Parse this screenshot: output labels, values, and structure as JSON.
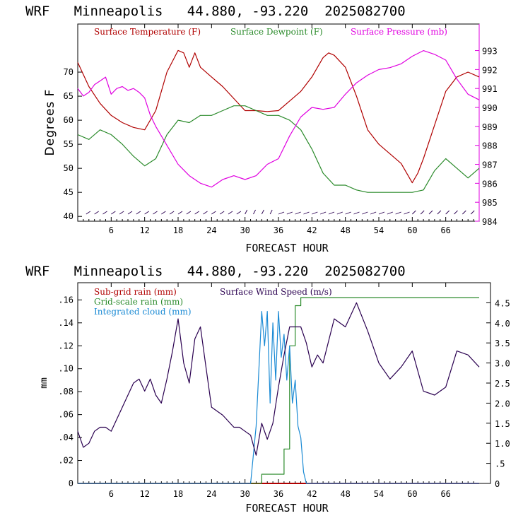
{
  "colors": {
    "temperature": "#b00000",
    "dewpoint": "#2a8a2a",
    "pressure": "#e000e0",
    "subgrid_rain": "#b00000",
    "gridscale_rain": "#2a8a2a",
    "cloud": "#1a8ad4",
    "wind_speed": "#2a0050",
    "wind_barbs": "#2a0050"
  },
  "chart_data": [
    {
      "type": "line",
      "title": "WRF   Minneapolis   44.880, -93.220  2025082700",
      "xlabel": "FORECAST HOUR",
      "ylabel": "Degrees F",
      "xlim": [
        0,
        72
      ],
      "ylim": [
        39,
        80
      ],
      "y2lim": [
        984,
        994.4
      ],
      "xticks": [
        "6",
        "12",
        "18",
        "24",
        "30",
        "36",
        "42",
        "48",
        "54",
        "60",
        "66"
      ],
      "yticks": [
        "40",
        "45",
        "50",
        "55",
        "60",
        "65",
        "70"
      ],
      "y2ticks": [
        "984",
        "985",
        "986",
        "987",
        "988",
        "989",
        "990",
        "991",
        "992",
        "993"
      ],
      "legend_position": "top",
      "series": [
        {
          "name": "Surface Temperature (F)",
          "axis": "left",
          "x": [
            0,
            2,
            4,
            6,
            8,
            10,
            12,
            14,
            16,
            18,
            19,
            20,
            21,
            22,
            24,
            26,
            28,
            30,
            32,
            34,
            36,
            38,
            40,
            42,
            44,
            45,
            46,
            48,
            50,
            52,
            54,
            56,
            58,
            60,
            61,
            62,
            64,
            66,
            68,
            70,
            72
          ],
          "y": [
            72,
            67,
            63.5,
            61,
            59.5,
            58.5,
            58,
            62,
            70,
            74.5,
            74,
            71,
            74,
            71,
            69,
            67,
            64.5,
            62,
            62,
            61.8,
            62,
            64,
            66,
            69,
            73,
            74,
            73.5,
            71,
            65,
            58,
            55,
            53,
            51,
            47,
            49,
            52,
            59,
            66,
            69,
            70,
            69
          ]
        },
        {
          "name": "Surface Dewpoint (F)",
          "axis": "left",
          "x": [
            0,
            2,
            4,
            6,
            8,
            10,
            12,
            14,
            16,
            18,
            20,
            22,
            24,
            26,
            28,
            30,
            32,
            34,
            36,
            38,
            40,
            42,
            44,
            46,
            48,
            50,
            52,
            54,
            56,
            58,
            60,
            62,
            64,
            66,
            68,
            70,
            72
          ],
          "y": [
            57,
            56,
            58,
            57,
            55,
            52.5,
            50.5,
            52,
            57,
            60,
            59.5,
            61,
            61,
            62,
            63,
            63,
            62,
            61,
            61,
            60,
            58,
            54,
            49,
            46.5,
            46.5,
            45.5,
            45,
            45,
            45,
            45,
            45,
            45.5,
            49.5,
            52,
            50,
            48,
            50
          ]
        },
        {
          "name": "Surface Pressure (mb)",
          "axis": "right",
          "x": [
            0,
            1,
            2,
            3,
            4,
            5,
            6,
            7,
            8,
            9,
            10,
            11,
            12,
            13,
            14,
            16,
            18,
            20,
            22,
            24,
            26,
            28,
            30,
            32,
            34,
            36,
            38,
            40,
            42,
            44,
            46,
            48,
            50,
            52,
            54,
            56,
            58,
            60,
            62,
            64,
            66,
            68,
            70,
            72
          ],
          "y": [
            991,
            990.6,
            990.8,
            991.2,
            991.4,
            991.6,
            990.7,
            991,
            991.1,
            990.9,
            991,
            990.8,
            990.5,
            989.6,
            989,
            988,
            987,
            986.4,
            986,
            985.8,
            986.2,
            986.4,
            986.2,
            986.4,
            987,
            987.3,
            988.5,
            989.5,
            990,
            989.9,
            990,
            990.7,
            991.3,
            991.7,
            992,
            992.1,
            992.3,
            992.7,
            993,
            992.8,
            992.5,
            991.5,
            990.7,
            990.4
          ]
        }
      ],
      "wind_barb_rows": 1
    },
    {
      "type": "line",
      "title": "WRF   Minneapolis   44.880, -93.220  2025082700",
      "xlabel": "FORECAST HOUR",
      "ylabel": "mm",
      "xlim": [
        0,
        72
      ],
      "ylim": [
        0,
        0.175
      ],
      "y2lim": [
        0,
        5
      ],
      "xticks": [
        "6",
        "12",
        "18",
        "24",
        "30",
        "36",
        "42",
        "48",
        "54",
        "60",
        "66"
      ],
      "yticks": [
        "0",
        ".02",
        ".04",
        ".06",
        ".08",
        ".10",
        ".12",
        ".14",
        ".16"
      ],
      "y2ticks": [
        "0",
        ".5",
        "1.0",
        "1.5",
        "2.0",
        "2.5",
        "3.0",
        "3.5",
        "4.0",
        "4.5"
      ],
      "legend_position": "top-left",
      "series": [
        {
          "name": "Sub-grid rain (mm)",
          "axis": "left",
          "x": [
            0,
            72
          ],
          "y": [
            0,
            0
          ]
        },
        {
          "name": "Grid-scale rain (mm)",
          "axis": "left",
          "x": [
            0,
            32,
            33,
            35,
            37,
            38,
            39,
            40,
            72
          ],
          "y": [
            0,
            0,
            0.008,
            0.008,
            0.03,
            0.12,
            0.155,
            0.162,
            0.162
          ]
        },
        {
          "name": "Integrated cloud (mm)",
          "axis": "left",
          "x": [
            0,
            31,
            32,
            33,
            33.5,
            34,
            34.5,
            35,
            35.5,
            36,
            36.5,
            37,
            37.5,
            38,
            38.5,
            39,
            39.5,
            40,
            40.5,
            41,
            72
          ],
          "y": [
            0,
            0,
            0.05,
            0.15,
            0.12,
            0.15,
            0.07,
            0.14,
            0.09,
            0.15,
            0.11,
            0.13,
            0.09,
            0.12,
            0.07,
            0.09,
            0.05,
            0.04,
            0.01,
            0,
            0
          ]
        },
        {
          "name": "Surface Wind Speed (m/s)",
          "axis": "right",
          "x": [
            0,
            1,
            2,
            3,
            4,
            5,
            6,
            8,
            10,
            11,
            12,
            13,
            14,
            15,
            16,
            17,
            18,
            19,
            20,
            21,
            22,
            23,
            24,
            26,
            28,
            29,
            30,
            31,
            32,
            33,
            34,
            35,
            36,
            37,
            38,
            40,
            41,
            42,
            43,
            44,
            46,
            48,
            50,
            52,
            54,
            56,
            58,
            60,
            62,
            64,
            66,
            68,
            70,
            72
          ],
          "y": [
            1.3,
            0.9,
            1.0,
            1.3,
            1.4,
            1.4,
            1.3,
            1.9,
            2.5,
            2.6,
            2.3,
            2.6,
            2.2,
            2.0,
            2.6,
            3.3,
            4.1,
            3.0,
            2.5,
            3.6,
            3.9,
            2.9,
            1.9,
            1.7,
            1.4,
            1.4,
            1.3,
            1.2,
            0.7,
            1.5,
            1.1,
            1.5,
            2.4,
            3.2,
            3.9,
            3.9,
            3.5,
            2.9,
            3.2,
            3.0,
            4.1,
            3.9,
            4.5,
            3.8,
            3.0,
            2.6,
            2.9,
            3.3,
            2.3,
            2.2,
            2.4,
            3.3,
            3.2,
            2.9
          ]
        }
      ]
    }
  ]
}
